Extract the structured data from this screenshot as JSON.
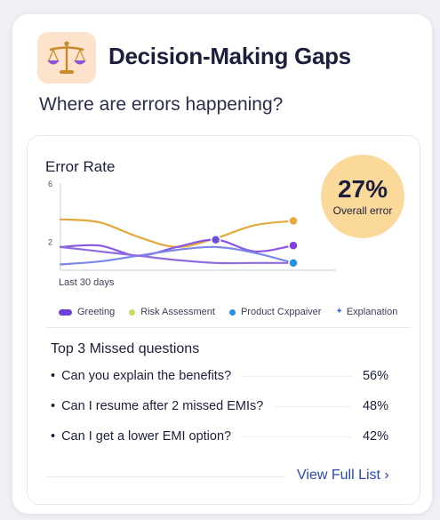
{
  "header": {
    "icon": "balance-scale-icon",
    "title": "Decision-Making Gaps",
    "subtitle": "Where are errors happening?"
  },
  "badge": {
    "value": "27%",
    "label": "Overall error"
  },
  "period": "Last 30 days",
  "legend": [
    {
      "label": "Greeting",
      "color": "#6e3fd6",
      "marker": "pill"
    },
    {
      "label": "Risk Assessment",
      "color": "#c9d66a",
      "marker": "dot"
    },
    {
      "label": "Product Cxppaiver",
      "color": "#2b8fd9",
      "marker": "dot"
    },
    {
      "label": "Explanation",
      "color": "#3d6fe0",
      "marker": "star"
    }
  ],
  "chart_data": {
    "type": "line",
    "title": "Error Rate",
    "xlabel": "Last 30 days",
    "ylabel": "",
    "ylim": [
      0,
      6
    ],
    "yticks": [
      "6",
      "2"
    ],
    "x": [
      0,
      1,
      2,
      3,
      4,
      5,
      6
    ],
    "series": [
      {
        "color": "#e2a93b",
        "values": [
          3.5,
          3.3,
          2.3,
          1.6,
          2.2,
          3.1,
          3.4
        ]
      },
      {
        "color": "#8b55e6",
        "values": [
          1.6,
          1.7,
          1.0,
          1.6,
          2.1,
          1.3,
          1.7
        ]
      },
      {
        "color": "#7c88e8",
        "values": [
          0.4,
          0.6,
          1.0,
          1.4,
          1.6,
          1.2,
          0.5
        ]
      },
      {
        "color": "#8e6ce0",
        "values": [
          1.6,
          1.3,
          1.0,
          0.7,
          0.5,
          0.5,
          0.5
        ]
      }
    ],
    "markers": [
      {
        "series": 0,
        "index": 6,
        "color": "#e7a93a"
      },
      {
        "series": 1,
        "index": 6,
        "color": "#7b3fe4"
      },
      {
        "series": 3,
        "index": 6,
        "color": "#2b8fd9"
      },
      {
        "series": 1,
        "index": 4,
        "color": "#6d4fe0"
      }
    ],
    "grid": false,
    "legend": "bottom"
  },
  "missed": {
    "title": "Top 3 Missed questions",
    "items": [
      {
        "text": "Can you explain the benefits?",
        "pct": "56%"
      },
      {
        "text": "Can I resume after 2 missed EMIs?",
        "pct": "48%"
      },
      {
        "text": "Can I get a lower EMI option?",
        "pct": "42%"
      }
    ]
  },
  "view_link": "View Full List ›"
}
